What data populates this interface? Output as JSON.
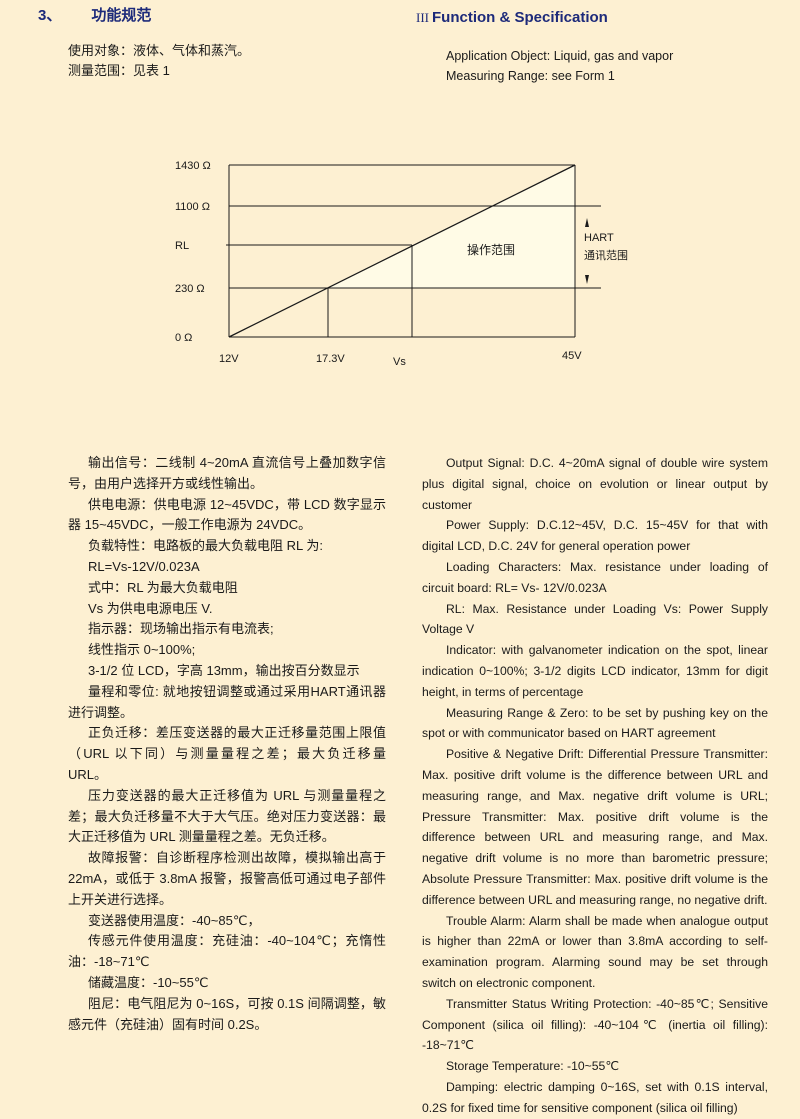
{
  "header": {
    "cn_number": "3、",
    "cn_title": "功能规范",
    "en_roman": "III",
    "en_title": "Function & Specification"
  },
  "intro": {
    "cn": [
      "使用对象：液体、气体和蒸汽。",
      "测量范围：见表 1"
    ],
    "en": [
      "Application Object: Liquid, gas and vapor",
      "Measuring Range: see Form 1"
    ]
  },
  "diagram": {
    "y_labels": [
      "1430 Ω",
      "1100 Ω",
      "RL",
      "230 Ω",
      "0 Ω"
    ],
    "x_labels": [
      "12V",
      "17.3V",
      "Vs",
      "45V"
    ],
    "region_label": "操作范围",
    "hart_label": "HART",
    "hart_sub": "通讯范围",
    "line_color": "#1a1a1a",
    "fill_color": "#fffbe6"
  },
  "left_paragraphs": [
    "输出信号：二线制 4~20mA 直流信号上叠加数字信号，由用户选择开方或线性输出。",
    "供电电源：供电电源 12~45VDC，带 LCD 数字显示器 15~45VDC，一般工作电源为 24VDC。",
    "负载特性：电路板的最大负载电阻 RL 为:",
    "RL=Vs-12V/0.023A",
    "式中：RL 为最大负载电阻",
    "Vs 为供电电源电压 V.",
    "指示器：现场输出指示有电流表;",
    "线性指示 0~100%;",
    "3-1/2 位 LCD，字高 13mm，输出按百分数显示",
    "量程和零位: 就地按钮调整或通过采用HART通讯器进行调整。",
    "正负迁移：差压变送器的最大正迁移量范围上限值（URL 以下同）与测量量程之差；最大负迁移量 URL。",
    "压力变送器的最大正迁移值为 URL 与测量量程之差；最大负迁移量不大于大气压。绝对压力变送器：最大正迁移值为 URL 测量量程之差。无负迁移。",
    "故障报警：自诊断程序检测出故障，模拟输出高于 22mA，或低于 3.8mA 报警，报警高低可通过电子部件上开关进行选择。",
    "变送器使用温度：-40~85℃，",
    "传感元件使用温度：充硅油：-40~104℃；充惰性油：-18~71℃",
    "储藏温度：-10~55℃",
    "阻尼：电气阻尼为 0~16S，可按 0.1S 间隔调整，敏感元件（充硅油）固有时间 0.2S。"
  ],
  "right_paragraphs": [
    "Output Signal: D.C. 4~20mA signal of double wire system plus digital signal, choice on evolution or linear output by customer",
    "Power Supply: D.C.12~45V, D.C. 15~45V for that with digital LCD, D.C. 24V for general operation power",
    "Loading Characters: Max. resistance under loading of circuit board: RL= Vs- 12V/0.023A",
    "RL: Max. Resistance under Loading   Vs: Power Supply Voltage V",
    "Indicator: with galvanometer indication on the spot, linear indication 0~100%; 3-1/2 digits LCD indicator, 13mm for digit height, in terms of percentage",
    "Measuring Range & Zero: to be set by pushing key on the spot or with communicator based on HART agreement",
    "Positive & Negative Drift: Differential Pressure Transmitter: Max. positive drift volume is the difference between URL and measuring range, and Max. negative drift volume is URL; Pressure Transmitter: Max. positive drift volume is the difference between URL and measuring range, and Max. negative drift volume is no more than barometric pressure; Absolute Pressure Transmitter: Max. positive drift volume is the difference between URL and measuring range, no negative drift.",
    "Trouble Alarm: Alarm shall be made when analogue output is higher than 22mA or lower than 3.8mA according to self-examination program. Alarming sound may be set through switch on electronic component.",
    "Transmitter Status Writing Protection: -40~85℃; Sensitive Component (silica oil filling): -40~104℃ (inertia oil filling): -18~71℃",
    "Storage Temperature: -10~55℃",
    "Damping: electric damping 0~16S, set with 0.1S interval, 0.2S for fixed time for sensitive component (silica oil filling)"
  ]
}
